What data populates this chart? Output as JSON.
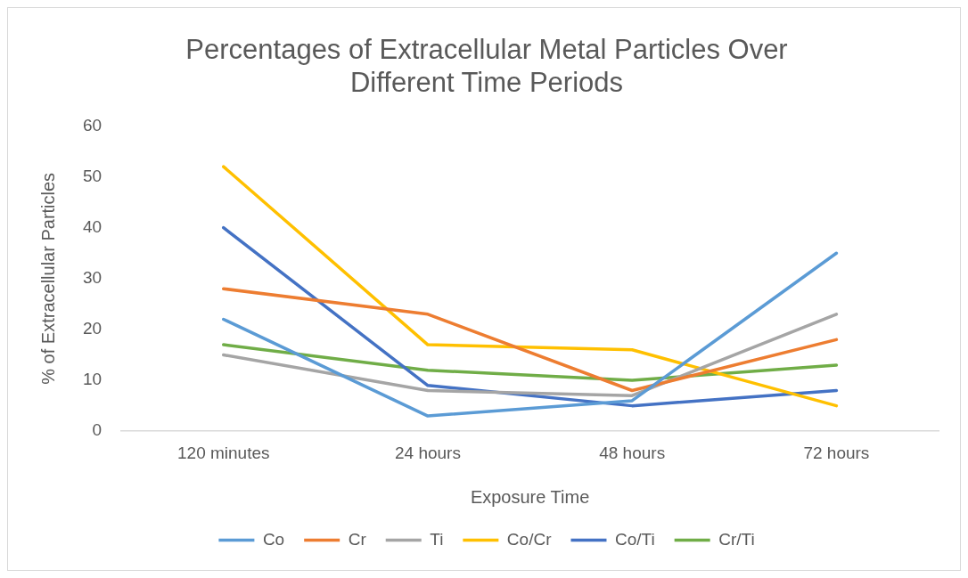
{
  "chart_data": {
    "type": "line",
    "title": "Percentages of Extracellular Metal Particles Over Different Time Periods",
    "xlabel": "Exposure Time",
    "ylabel": "% of Extracellular Particles",
    "categories": [
      "120 minutes",
      "24 hours",
      "48 hours",
      "72 hours"
    ],
    "series": [
      {
        "name": "Co",
        "color": "#5b9bd5",
        "values": [
          22,
          3,
          6,
          35
        ]
      },
      {
        "name": "Cr",
        "color": "#ed7d31",
        "values": [
          28,
          23,
          8,
          18
        ]
      },
      {
        "name": "Ti",
        "color": "#a5a5a5",
        "values": [
          15,
          8,
          7,
          23
        ]
      },
      {
        "name": "Co/Cr",
        "color": "#ffc000",
        "values": [
          52,
          17,
          16,
          5
        ]
      },
      {
        "name": "Co/Ti",
        "color": "#4472c4",
        "values": [
          40,
          9,
          5,
          8
        ]
      },
      {
        "name": "Cr/Ti",
        "color": "#70ad47",
        "values": [
          17,
          12,
          10,
          13
        ]
      }
    ],
    "ylim": [
      0,
      60
    ],
    "yticks": [
      0,
      10,
      20,
      30,
      40,
      50,
      60
    ],
    "grid": false,
    "legend": "bottom",
    "marker": "none",
    "line_style": "solid"
  }
}
